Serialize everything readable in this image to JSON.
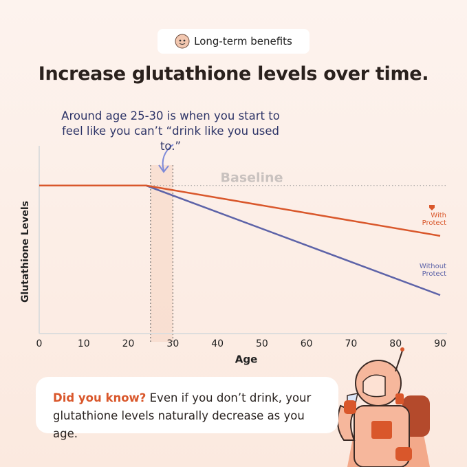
{
  "header": {
    "badge": "Long-term benefits",
    "title": "Increase glutathione levels over time."
  },
  "annotation": "Around age 25-30 is when you start to feel like you can’t “drink like you used to.”",
  "chart_data": {
    "type": "line",
    "x": [
      0,
      24,
      90
    ],
    "series": [
      {
        "name": "With Protect",
        "color": "#d9572b",
        "values": [
          100,
          100,
          66
        ]
      },
      {
        "name": "Without Protect",
        "color": "#5d63a8",
        "values": [
          100,
          100,
          26
        ]
      }
    ],
    "xlim": [
      0,
      90
    ],
    "xticks": [
      0,
      10,
      20,
      30,
      40,
      50,
      60,
      70,
      80,
      90
    ],
    "ylim": [
      0,
      125
    ],
    "xlabel": "Age",
    "ylabel": "Glutathione Levels",
    "baseline": {
      "label": "Baseline",
      "value": 100
    },
    "highlight_range": [
      25,
      30
    ]
  },
  "callout": {
    "lead": "Did you know?",
    "text": "Even if you don’t drink, your glutathione levels naturally decrease as you age."
  }
}
